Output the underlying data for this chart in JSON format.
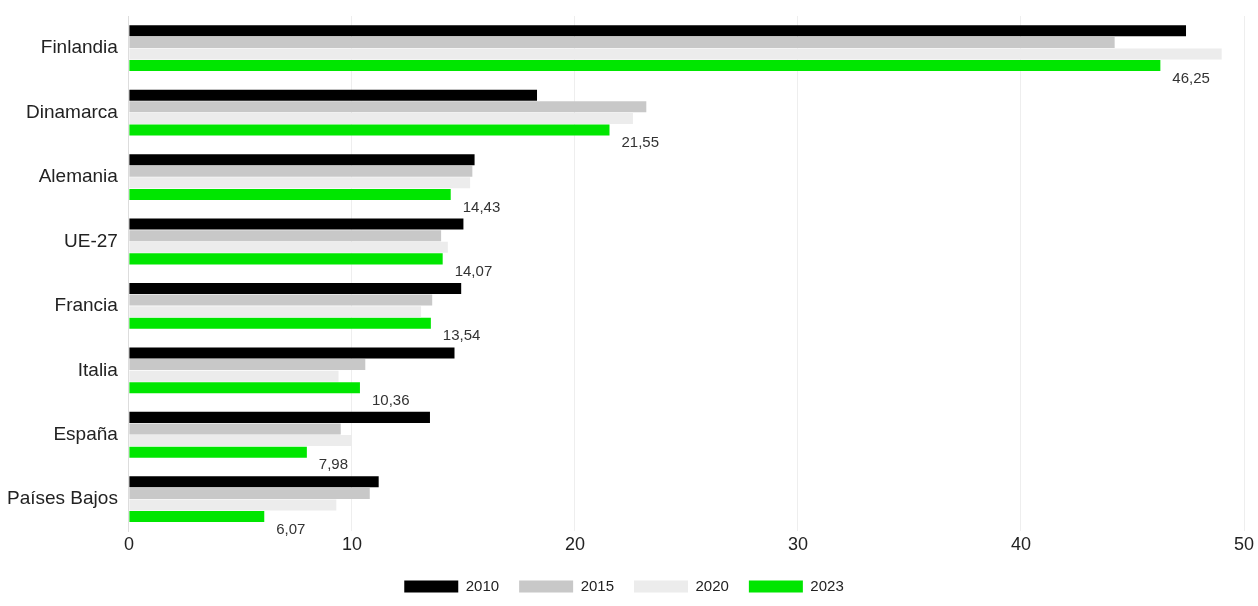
{
  "chart_data": {
    "type": "bar",
    "orientation": "horizontal",
    "categories": [
      "Finlandia",
      "Dinamarca",
      "Alemania",
      "UE-27",
      "Francia",
      "Italia",
      "España",
      "Países Bajos"
    ],
    "series": [
      {
        "name": "2010",
        "color": "#000000",
        "values": [
          47.4,
          18.3,
          15.5,
          15.0,
          14.9,
          14.6,
          13.5,
          11.2
        ]
      },
      {
        "name": "2015",
        "color": "#c8c8c8",
        "values": [
          44.2,
          23.2,
          15.4,
          14.0,
          13.6,
          10.6,
          9.5,
          10.8
        ]
      },
      {
        "name": "2020",
        "color": "#ececec",
        "values": [
          49.0,
          22.6,
          15.3,
          14.3,
          13.1,
          9.4,
          10.0,
          9.3
        ]
      },
      {
        "name": "2023",
        "color": "#00e600",
        "values": [
          46.25,
          21.55,
          14.43,
          14.07,
          13.54,
          10.36,
          7.98,
          6.07
        ],
        "value_labels": [
          "46,25",
          "21,55",
          "14,43",
          "14,07",
          "13,54",
          "10,36",
          "7,98",
          "6,07"
        ]
      }
    ],
    "xlim": [
      0,
      50
    ],
    "xticks": [
      0,
      10,
      20,
      30,
      40,
      50
    ],
    "grid": "x",
    "legend": "bottom"
  }
}
